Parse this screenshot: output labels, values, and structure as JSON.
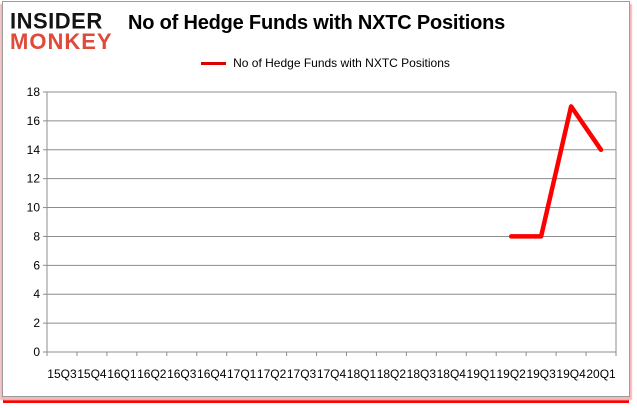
{
  "logo": {
    "line1": "INSIDER",
    "line2": "MONKEY"
  },
  "header": {
    "title": "No of Hedge Funds with NXTC Positions"
  },
  "legend": {
    "label": "No of Hedge Funds with NXTC Positions"
  },
  "colors": {
    "series": "#fe0000",
    "legend_swatch": "#dd0000",
    "grid": "#8c8c8c",
    "axis": "#8c8c8c",
    "text": "#000000",
    "logo_black": "#141414",
    "logo_red": "#e04a38",
    "frame_red": "#fb0404",
    "frame_pink": "#f3b8b8",
    "frame_border": "#9c9c9c"
  },
  "chart_data": {
    "type": "line",
    "title": "No of Hedge Funds with NXTC Positions",
    "categories": [
      "15Q3",
      "15Q4",
      "16Q1",
      "16Q2",
      "16Q3",
      "16Q4",
      "17Q1",
      "17Q2",
      "17Q3",
      "17Q4",
      "18Q1",
      "18Q2",
      "18Q3",
      "18Q4",
      "19Q1",
      "19Q2",
      "19Q3",
      "19Q4",
      "20Q1"
    ],
    "series": [
      {
        "name": "No of Hedge Funds with NXTC Positions",
        "color": "#fe0000",
        "values": [
          null,
          null,
          null,
          null,
          null,
          null,
          null,
          null,
          null,
          null,
          null,
          null,
          null,
          null,
          null,
          8,
          8,
          17,
          14
        ]
      }
    ],
    "ylim": [
      0,
      18
    ],
    "ytick_step": 2,
    "grid": true,
    "legend_position": "top-center",
    "xlabel": "",
    "ylabel": ""
  }
}
